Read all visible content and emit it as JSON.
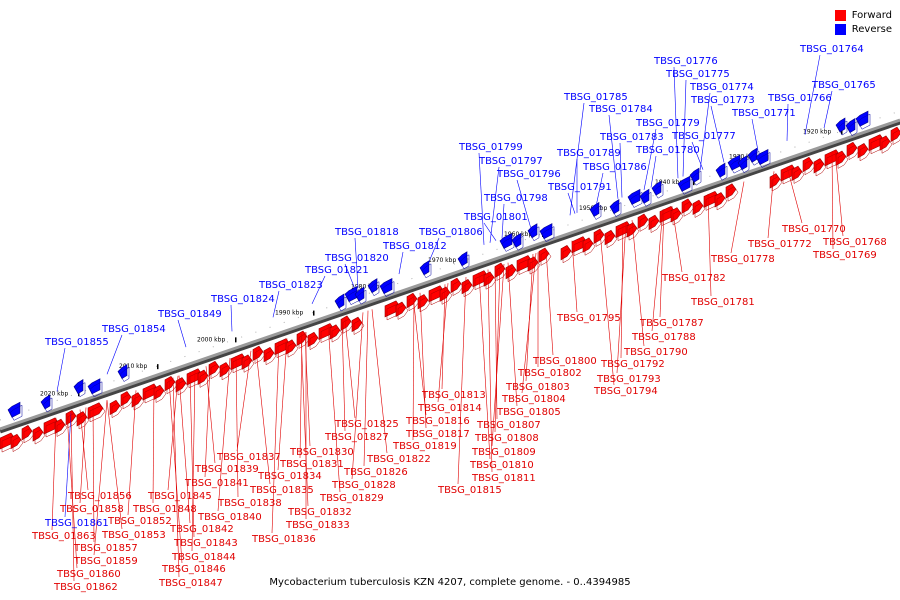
{
  "caption": "Mycobacterium tuberculosis KZN 4207, complete genome. - 0..4394985",
  "legend": [
    {
      "label": "Forward",
      "color": "#ff0000"
    },
    {
      "label": "Reverse",
      "color": "#0000ff"
    }
  ],
  "colors": {
    "forward": "#ff0000",
    "reverse": "#0000ff",
    "axis": "#808080"
  },
  "ticks": [
    "1920 kbp",
    "1930 kbp",
    "1940 kbp",
    "1950 kbp",
    "1960 kbp",
    "1970 kbp",
    "1980 kbp",
    "1990 kbp",
    "2000 kbp",
    "2010 kbp",
    "2020 kbp"
  ],
  "reverse_genes": [
    "TBSG_01764",
    "TBSG_01765",
    "TBSG_01766",
    "TBSG_01771",
    "TBSG_01773",
    "TBSG_01774",
    "TBSG_01775",
    "TBSG_01776",
    "TBSG_01777",
    "TBSG_01779",
    "TBSG_01780",
    "TBSG_01783",
    "TBSG_01784",
    "TBSG_01785",
    "TBSG_01786",
    "TBSG_01789",
    "TBSG_01791",
    "TBSG_01796",
    "TBSG_01797",
    "TBSG_01798",
    "TBSG_01799",
    "TBSG_01801",
    "TBSG_01806",
    "TBSG_01812",
    "TBSG_01818",
    "TBSG_01820",
    "TBSG_01821",
    "TBSG_01823",
    "TBSG_01824",
    "TBSG_01849",
    "TBSG_01854",
    "TBSG_01855"
  ],
  "reverse_lower_genes": [
    "TBSG_01861"
  ],
  "forward_genes_a": [
    "TBSG_01770",
    "TBSG_01768",
    "TBSG_01769",
    "TBSG_01772",
    "TBSG_01778",
    "TBSG_01782",
    "TBSG_01781",
    "TBSG_01787",
    "TBSG_01788",
    "TBSG_01790",
    "TBSG_01795",
    "TBSG_01792",
    "TBSG_01793",
    "TBSG_01794",
    "TBSG_01800",
    "TBSG_01802",
    "TBSG_01803",
    "TBSG_01804",
    "TBSG_01805",
    "TBSG_01807",
    "TBSG_01808",
    "TBSG_01809",
    "TBSG_01810",
    "TBSG_01811",
    "TBSG_01813",
    "TBSG_01814",
    "TBSG_01816",
    "TBSG_01817",
    "TBSG_01819",
    "TBSG_01815",
    "TBSG_01822"
  ],
  "forward_genes_b": [
    "TBSG_01825",
    "TBSG_01827",
    "TBSG_01826",
    "TBSG_01828",
    "TBSG_01829",
    "TBSG_01830",
    "TBSG_01831",
    "TBSG_01834",
    "TBSG_01835",
    "TBSG_01832",
    "TBSG_01833",
    "TBSG_01836",
    "TBSG_01837",
    "TBSG_01839",
    "TBSG_01838",
    "TBSG_01841",
    "TBSG_01840",
    "TBSG_01842",
    "TBSG_01843",
    "TBSG_01844",
    "TBSG_01845",
    "TBSG_01846",
    "TBSG_01847",
    "TBSG_01848",
    "TBSG_01852",
    "TBSG_01853",
    "TBSG_01856",
    "TBSG_01857",
    "TBSG_01858",
    "TBSG_01859",
    "TBSG_01860",
    "TBSG_01862",
    "TBSG_01863"
  ]
}
